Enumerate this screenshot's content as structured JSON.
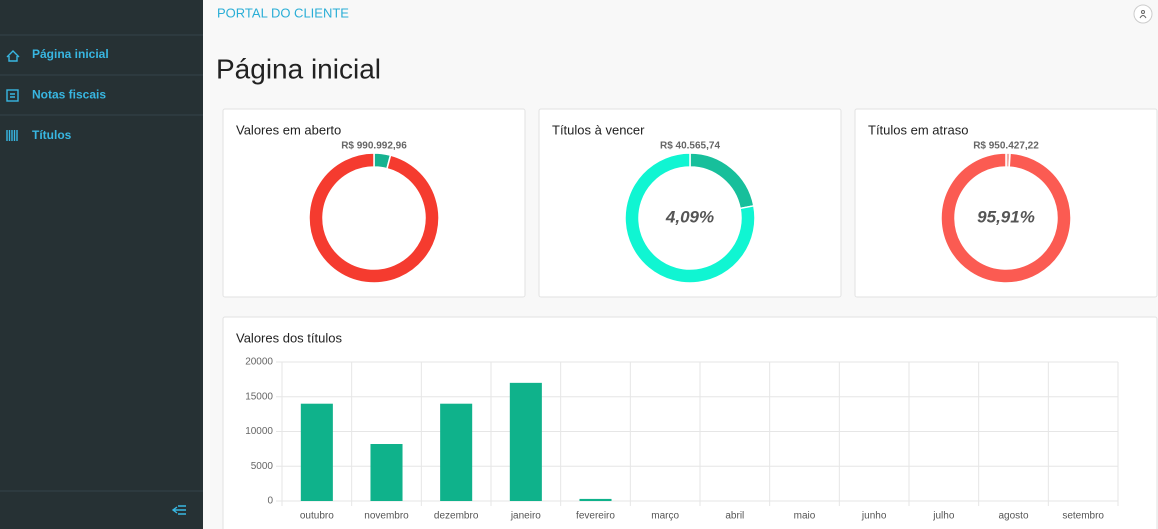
{
  "header": {
    "title": "PORTAL DO CLIENTE"
  },
  "sidebar": {
    "items": [
      "Página inicial",
      "Notas fiscais",
      "Títulos"
    ]
  },
  "page_title": "Página inicial",
  "chart_data": [
    {
      "type": "doughnut",
      "title": "Valores em aberto",
      "annotation": "R$ 990.992,96",
      "values": [
        40565.74,
        950427.22
      ],
      "colors": [
        "#16b290",
        "#f53b2f"
      ]
    },
    {
      "type": "doughnut",
      "title": "Títulos à vencer",
      "annotation": "R$ 40.565,74",
      "center_label": "4,09%",
      "values": [
        22,
        78
      ],
      "colors": [
        "#17bf9b",
        "#10f5d2"
      ]
    },
    {
      "type": "doughnut",
      "title": "Títulos em atraso",
      "annotation": "R$ 950.427,22",
      "center_label": "95,91%",
      "values": [
        1,
        99
      ],
      "colors": [
        "#f4a9a3",
        "#fb5b52"
      ]
    },
    {
      "type": "bar",
      "title": "Valores dos títulos",
      "categories": [
        "outubro",
        "novembro",
        "dezembro",
        "janeiro",
        "fevereiro",
        "março",
        "abril",
        "maio",
        "junho",
        "julho",
        "agosto",
        "setembro"
      ],
      "values": [
        14000,
        8200,
        14000,
        17000,
        300,
        0,
        0,
        0,
        0,
        0,
        0,
        0
      ],
      "color": "#0fb28b",
      "ylim": [
        0,
        20000
      ],
      "yticks": [
        0,
        5000,
        10000,
        15000,
        20000
      ],
      "grid": true
    }
  ]
}
